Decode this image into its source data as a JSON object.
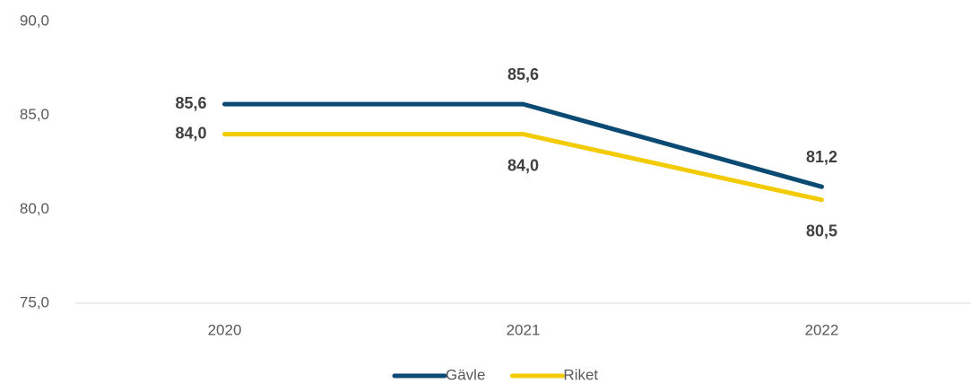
{
  "chart_data": {
    "type": "line",
    "categories": [
      "2020",
      "2021",
      "2022"
    ],
    "series": [
      {
        "name": "Gävle",
        "color": "#0b4a72",
        "values": [
          85.6,
          85.6,
          81.2
        ],
        "value_labels": [
          "85,6",
          "85,6",
          "81,2"
        ]
      },
      {
        "name": "Riket",
        "color": "#f2cb05",
        "values": [
          84.0,
          84.0,
          80.5
        ],
        "value_labels": [
          "84,0",
          "84,0",
          "80,5"
        ]
      }
    ],
    "ylim": [
      75,
      90
    ],
    "yticks": [
      {
        "value": 75,
        "label": "75,0"
      },
      {
        "value": 80,
        "label": "80,0"
      },
      {
        "value": 85,
        "label": "85,0"
      },
      {
        "value": 90,
        "label": "90,0"
      }
    ],
    "grid": false,
    "legend": "bottom"
  }
}
